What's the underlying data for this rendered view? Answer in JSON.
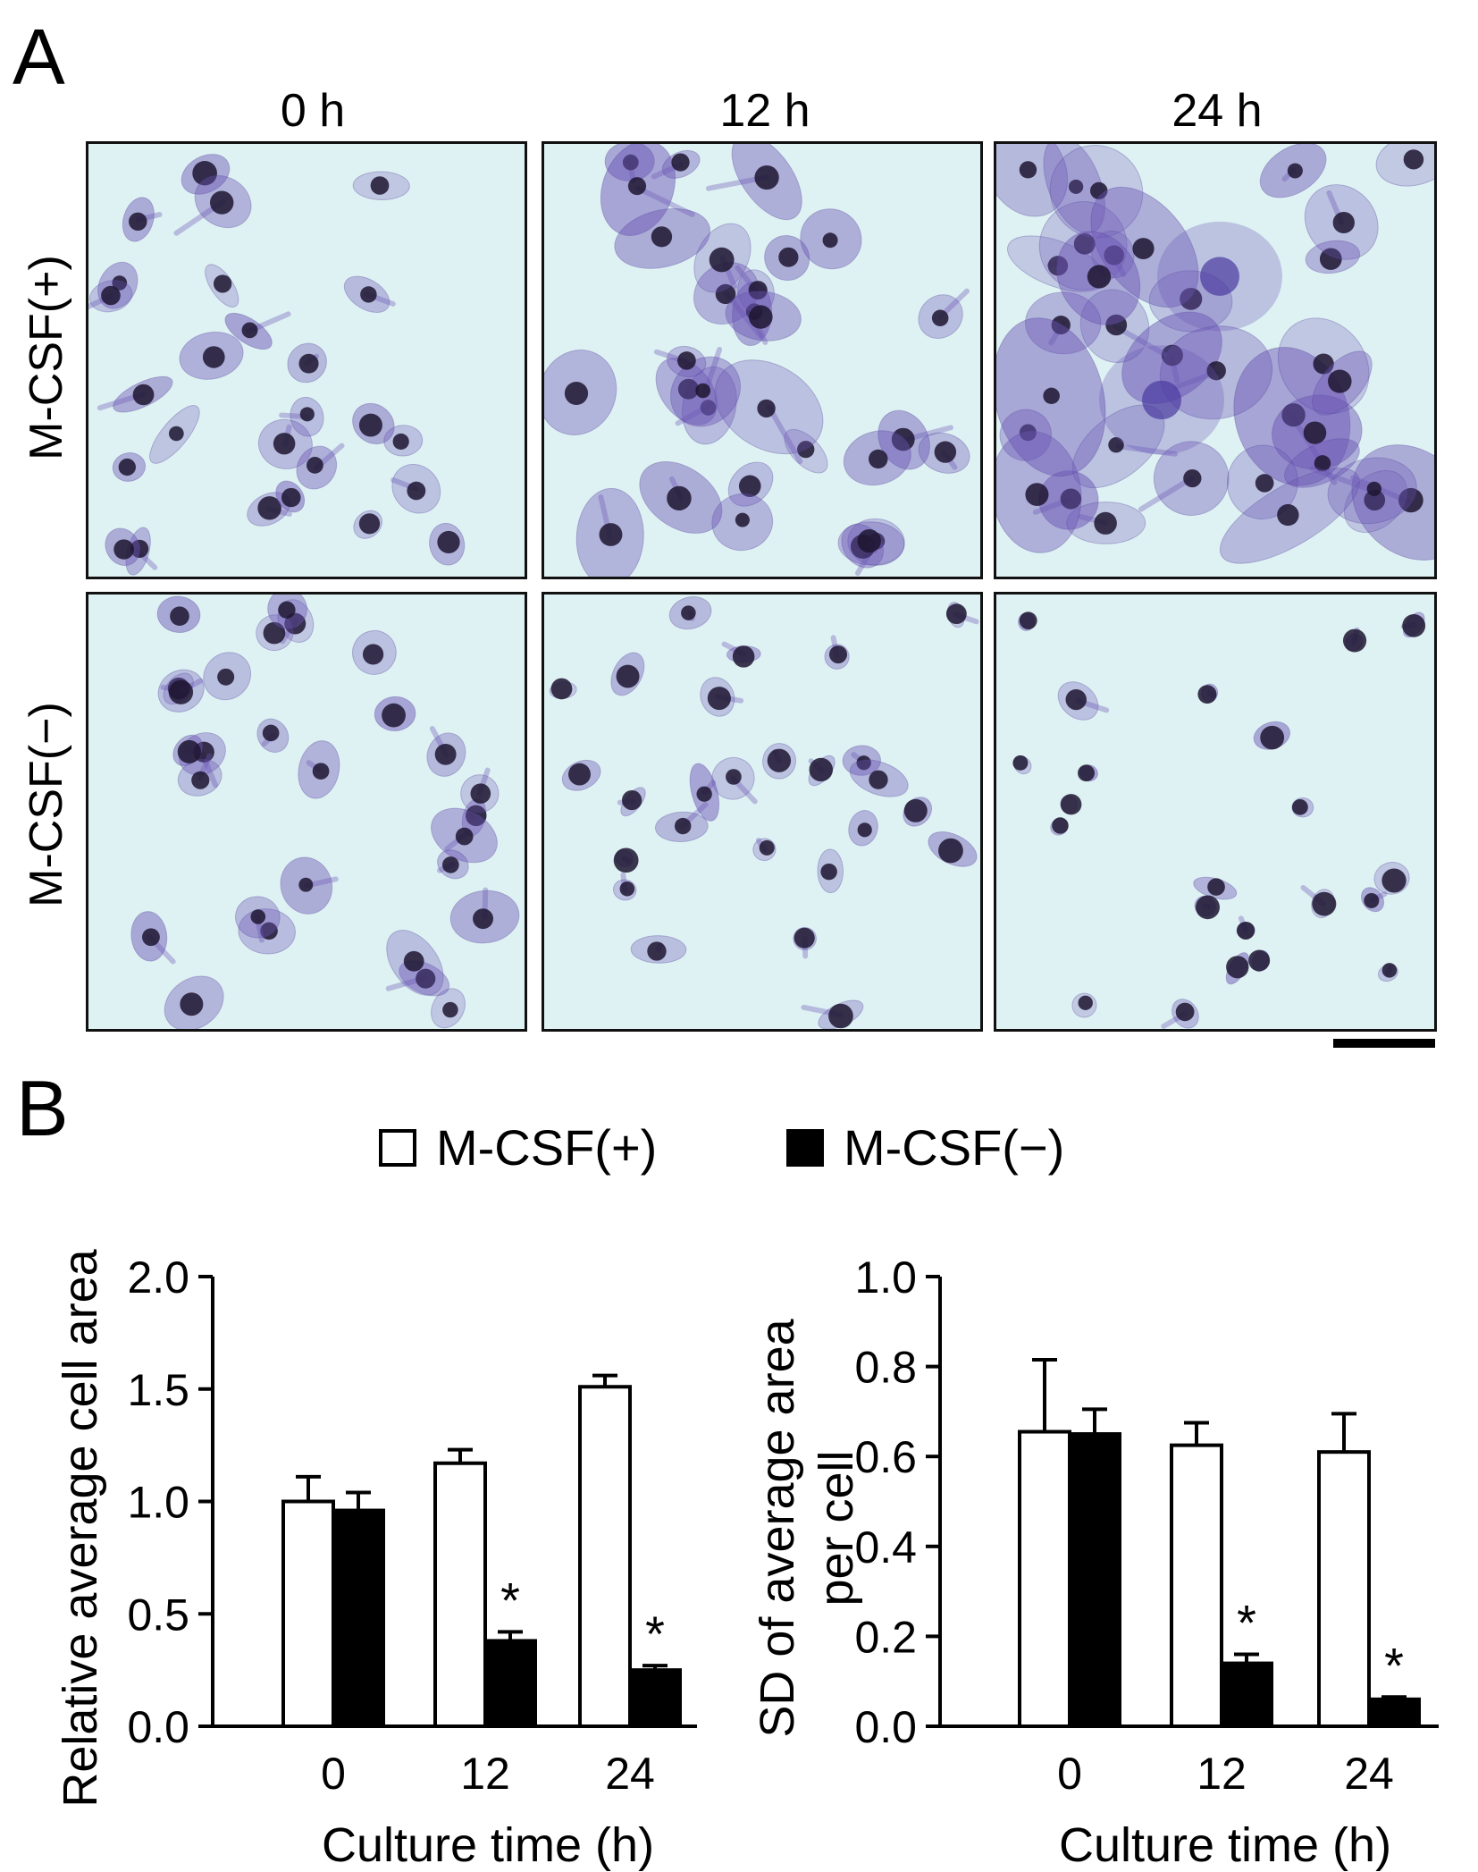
{
  "figure": {
    "panel_a_letter": "A",
    "panel_b_letter": "B",
    "column_labels": [
      "0 h",
      "12 h",
      "24 h"
    ],
    "row_labels": [
      "M-CSF(+)",
      "M-CSF(−)"
    ],
    "legend": [
      {
        "label": "M-CSF(+)",
        "fill": "#ffffff"
      },
      {
        "label": "M-CSF(−)",
        "fill": "#000000"
      }
    ],
    "colors": {
      "micrograph_bg": "#dff2f3",
      "cell_purple": "#6b55b5",
      "nucleus": "#1d1530"
    }
  },
  "chart_data": [
    {
      "type": "bar",
      "ylabel": "Relative average cell area",
      "xlabel": "Culture time (h)",
      "categories": [
        "0",
        "12",
        "24"
      ],
      "ylim": [
        0,
        2.0
      ],
      "yticks": [
        "0.0",
        "0.5",
        "1.0",
        "1.5",
        "2.0"
      ],
      "ytick_values": [
        0,
        0.5,
        1.0,
        1.5,
        2.0
      ],
      "series": [
        {
          "name": "M-CSF(+)",
          "values": [
            1.0,
            1.17,
            1.51
          ],
          "errors": [
            0.11,
            0.06,
            0.05
          ]
        },
        {
          "name": "M-CSF(−)",
          "values": [
            0.96,
            0.38,
            0.25
          ],
          "errors": [
            0.08,
            0.04,
            0.02
          ]
        }
      ],
      "annotations": [
        {
          "text": "*",
          "category": "12",
          "series": "M-CSF(−)"
        },
        {
          "text": "*",
          "category": "24",
          "series": "M-CSF(−)"
        }
      ],
      "grid": false
    },
    {
      "type": "bar",
      "ylabel": "SD of average area per cell",
      "ylabel_lines": [
        "SD of average area",
        "per cell"
      ],
      "xlabel": "Culture time (h)",
      "categories": [
        "0",
        "12",
        "24"
      ],
      "ylim": [
        0,
        1.0
      ],
      "yticks": [
        "0.0",
        "0.2",
        "0.4",
        "0.6",
        "0.8",
        "1.0"
      ],
      "ytick_values": [
        0,
        0.2,
        0.4,
        0.6,
        0.8,
        1.0
      ],
      "series": [
        {
          "name": "M-CSF(+)",
          "values": [
            0.655,
            0.625,
            0.61
          ],
          "errors": [
            0.16,
            0.05,
            0.085
          ]
        },
        {
          "name": "M-CSF(−)",
          "values": [
            0.65,
            0.14,
            0.06
          ],
          "errors": [
            0.055,
            0.02,
            0.005
          ]
        }
      ],
      "annotations": [
        {
          "text": "*",
          "category": "12",
          "series": "M-CSF(−)"
        },
        {
          "text": "*",
          "category": "24",
          "series": "M-CSF(−)"
        }
      ],
      "grid": false
    }
  ]
}
